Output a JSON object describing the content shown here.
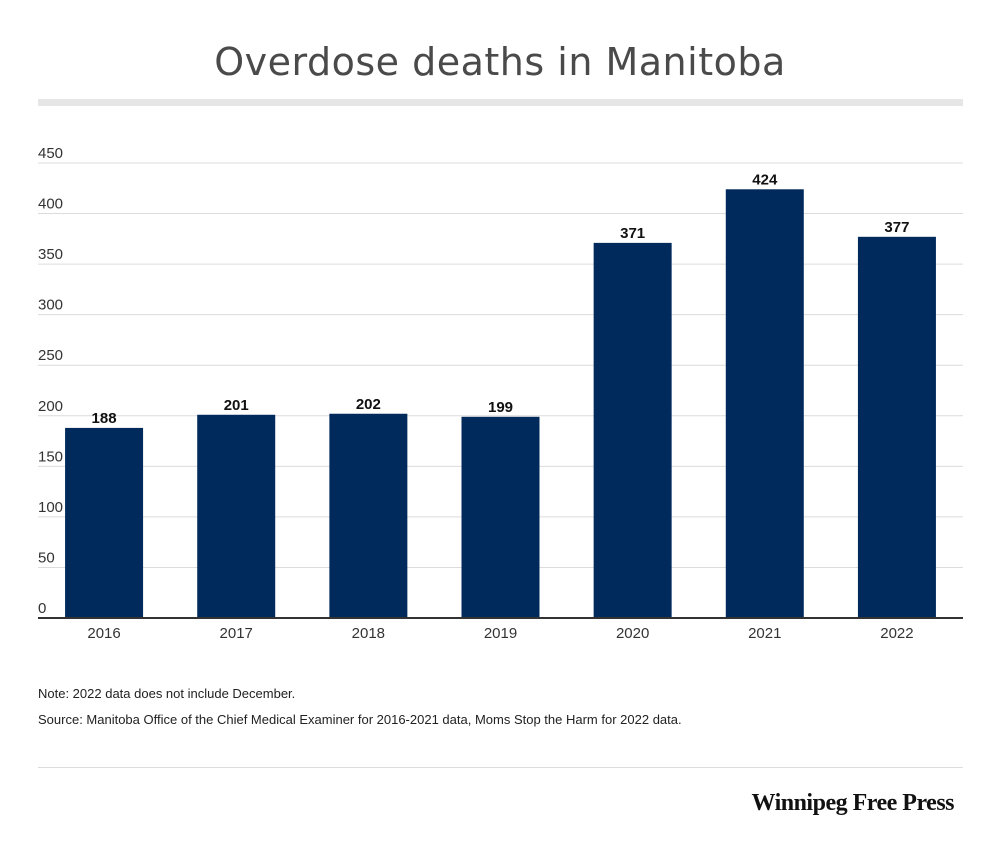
{
  "chart_data": {
    "type": "bar",
    "title": "Overdose deaths in Manitoba",
    "categories": [
      "2016",
      "2017",
      "2018",
      "2019",
      "2020",
      "2021",
      "2022"
    ],
    "values": [
      188,
      201,
      202,
      199,
      371,
      424,
      377
    ],
    "data_labels": [
      "188",
      "201",
      "202",
      "199",
      "371",
      "424",
      "377"
    ],
    "ylim": [
      0,
      450
    ],
    "yticks": [
      0,
      50,
      100,
      150,
      200,
      250,
      300,
      350,
      400,
      450
    ],
    "xlabel": "",
    "ylabel": "",
    "grid": true,
    "colors": {
      "bar": "#002a5c",
      "grid": "#dcdcdc",
      "axis": "#333333"
    }
  },
  "notes": {
    "note": "Note: 2022 data does not include December.",
    "source": "Source: Manitoba Office of the Chief Medical Examiner for 2016-2021 data, Moms Stop the Harm for 2022 data."
  },
  "brand": {
    "logo_text": "Winnipeg Free Press"
  }
}
